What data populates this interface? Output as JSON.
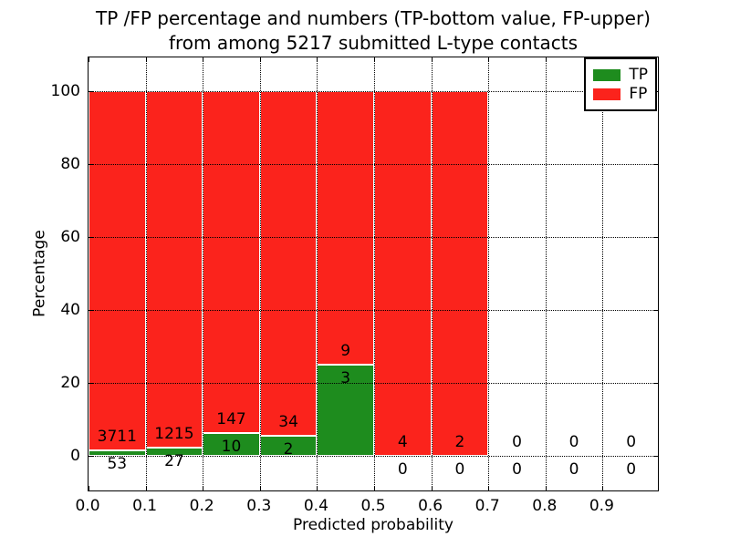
{
  "title": {
    "line1": "TP /FP percentage and numbers (TP-bottom value, FP-upper)",
    "line2": "from among 5217 submitted L-type contacts"
  },
  "axes": {
    "xlabel": "Predicted probability",
    "ylabel": "Percentage",
    "x_ticks": [
      "0.0",
      "0.1",
      "0.2",
      "0.3",
      "0.4",
      "0.5",
      "0.6",
      "0.7",
      "0.8",
      "0.9"
    ],
    "y_ticks": [
      "0",
      "20",
      "40",
      "60",
      "80",
      "100"
    ]
  },
  "legend": {
    "items": [
      {
        "label": "TP",
        "color": "#1e8c1e"
      },
      {
        "label": "FP",
        "color": "#fb231c"
      }
    ]
  },
  "chart_data": {
    "type": "bar",
    "stacked": true,
    "title": "TP /FP percentage and numbers (TP-bottom value, FP-upper) from among 5217 submitted L-type contacts",
    "xlabel": "Predicted probability",
    "ylabel": "Percentage",
    "x_bin_edges": [
      0.0,
      0.1,
      0.2,
      0.3,
      0.4,
      0.5,
      0.6,
      0.7,
      0.8,
      0.9,
      1.0
    ],
    "categories": [
      "0.0-0.1",
      "0.1-0.2",
      "0.2-0.3",
      "0.3-0.4",
      "0.4-0.5",
      "0.5-0.6",
      "0.6-0.7",
      "0.7-0.8",
      "0.8-0.9",
      "0.9-1.0"
    ],
    "series": [
      {
        "name": "TP",
        "color": "#1e8c1e",
        "counts": [
          53,
          27,
          10,
          2,
          3,
          0,
          0,
          0,
          0,
          0
        ],
        "percent_of_bin": [
          1.41,
          2.17,
          6.37,
          5.56,
          25.0,
          0.0,
          0.0,
          null,
          null,
          null
        ]
      },
      {
        "name": "FP",
        "color": "#fb231c",
        "counts": [
          3711,
          1215,
          147,
          34,
          9,
          4,
          2,
          0,
          0,
          0
        ],
        "percent_of_bin": [
          98.59,
          97.83,
          93.63,
          94.44,
          75.0,
          100.0,
          100.0,
          null,
          null,
          null
        ]
      }
    ],
    "total_contacts": 5217,
    "xlim": [
      0.0,
      1.0
    ],
    "ylim": [
      -10,
      110
    ],
    "grid": true,
    "legend_position": "upper right",
    "note": "Each 0.1-wide bin is stacked to 100% (TP% bottom green, FP% top red); numeric labels show raw counts, FP count above the TP/FP boundary and TP count below it"
  }
}
